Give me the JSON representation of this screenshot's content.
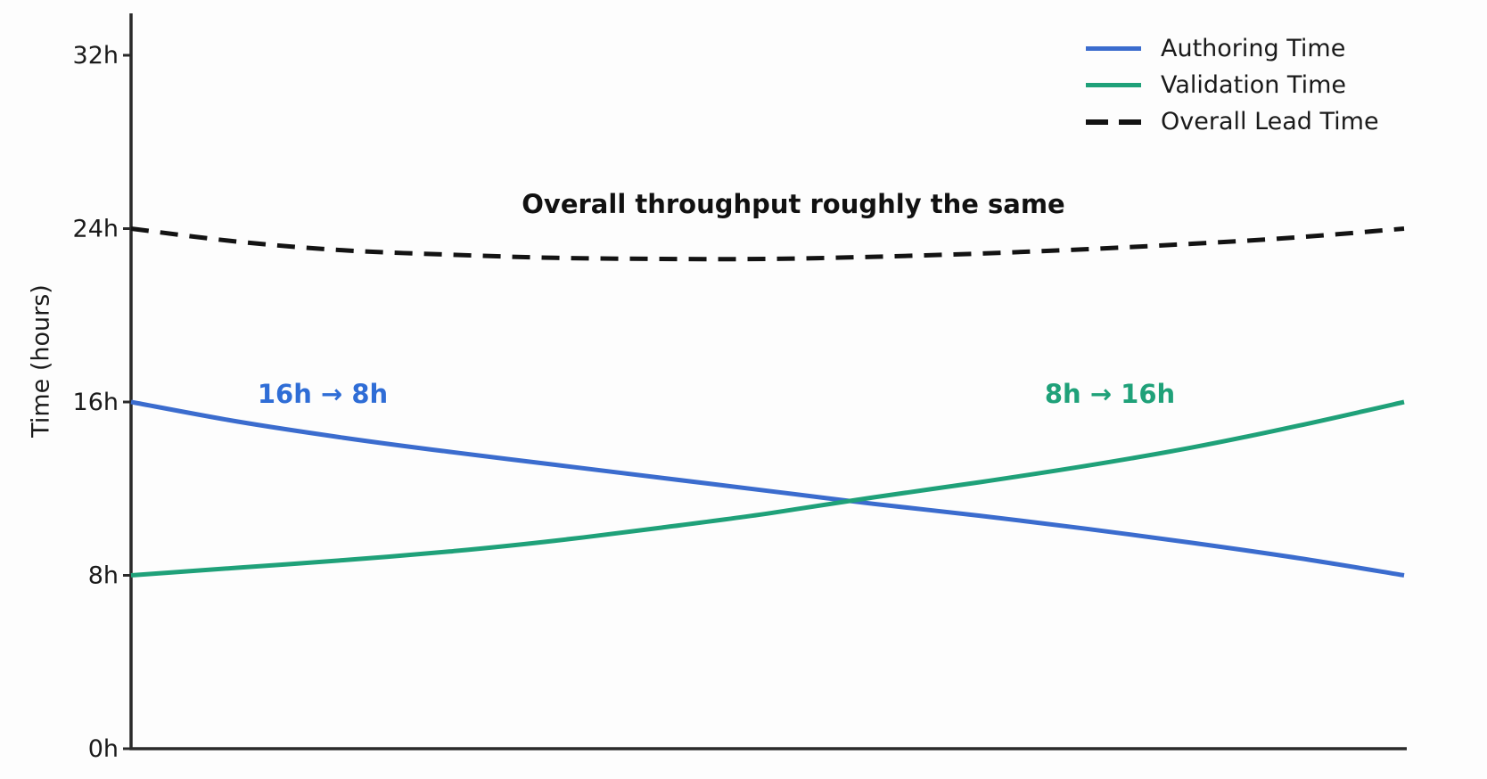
{
  "chart_data": {
    "type": "line",
    "title": "",
    "xlabel": "",
    "ylabel": "Time (hours)",
    "ylim": [
      0,
      34
    ],
    "grid": false,
    "legend_position": "top-right",
    "yticks": [
      {
        "label": "0h",
        "hours": 0
      },
      {
        "label": "8h",
        "hours": 8
      },
      {
        "label": "16h",
        "hours": 16
      },
      {
        "label": "24h",
        "hours": 24
      },
      {
        "label": "32h",
        "hours": 32
      }
    ],
    "xticks": [],
    "x": [
      0,
      1,
      2,
      3,
      4,
      5,
      6,
      7,
      8,
      9,
      10,
      11,
      12
    ],
    "series": [
      {
        "name": "Authoring Time",
        "style": "solid",
        "color": "#3b6cce",
        "values": [
          16.0,
          15.1,
          14.35,
          13.7,
          13.1,
          12.5,
          11.9,
          11.3,
          10.75,
          10.15,
          9.5,
          8.8,
          8.0
        ]
      },
      {
        "name": "Validation Time",
        "style": "solid",
        "color": "#1fa179",
        "values": [
          8.0,
          8.35,
          8.7,
          9.1,
          9.6,
          10.2,
          10.85,
          11.6,
          12.3,
          13.05,
          13.9,
          14.9,
          16.0
        ]
      },
      {
        "name": "Overall Lead Time",
        "style": "dashed",
        "color": "#131313",
        "values": [
          24.0,
          23.4,
          23.0,
          22.8,
          22.65,
          22.6,
          22.6,
          22.7,
          22.85,
          23.05,
          23.3,
          23.6,
          24.0
        ]
      }
    ],
    "annotations": [
      {
        "text": "Overall throughput roughly the same",
        "color": "#111111",
        "bold": true
      },
      {
        "text": "16h → 8h",
        "color": "#2f6dd6",
        "bold": true
      },
      {
        "text": "8h → 16h",
        "color": "#1fa179",
        "bold": true
      }
    ]
  }
}
